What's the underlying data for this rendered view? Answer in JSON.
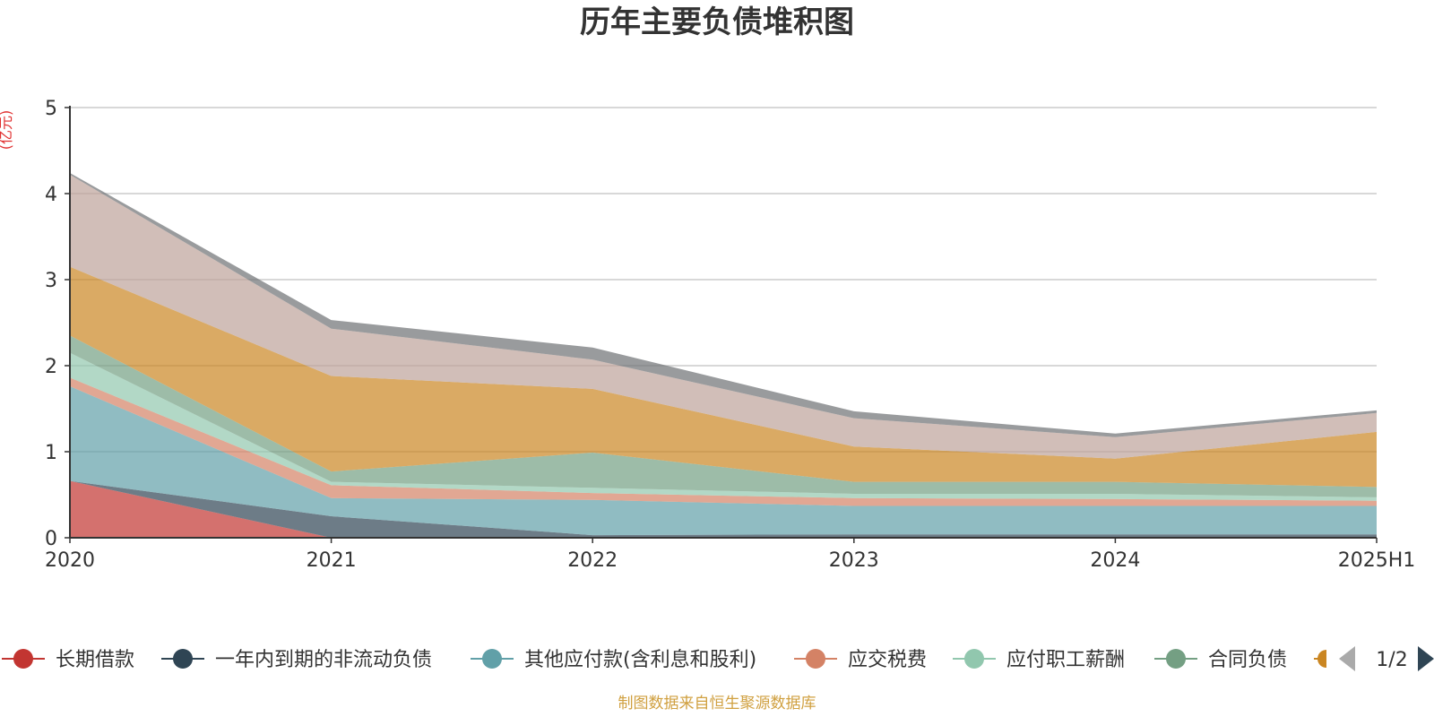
{
  "chart_data": {
    "type": "area",
    "stacked": true,
    "title": "历年主要负债堆积图",
    "ylabel": "(亿元)",
    "x": [
      "2020",
      "2021",
      "2022",
      "2023",
      "2024",
      "2025H1"
    ],
    "ylim": [
      0,
      5
    ],
    "yticks": [
      "0",
      "1",
      "2",
      "3",
      "4",
      "5"
    ],
    "grid": true,
    "legend_position": "bottom",
    "legend_page": "1/2",
    "source": "制图数据来自恒生聚源数据库",
    "series": [
      {
        "name": "长期借款",
        "color": "#c23531",
        "values": [
          0.66,
          0,
          0,
          0,
          0,
          0
        ]
      },
      {
        "name": "一年内到期的非流动负债",
        "color": "#2f4554",
        "values": [
          0,
          0.25,
          0.03,
          0.04,
          0.04,
          0.04
        ]
      },
      {
        "name": "其他应付款(含利息和股利)",
        "color": "#61a0a8",
        "values": [
          1.1,
          0.21,
          0.41,
          0.33,
          0.33,
          0.33
        ]
      },
      {
        "name": "应交税费",
        "color": "#d48265",
        "values": [
          0.1,
          0.15,
          0.08,
          0.09,
          0.08,
          0.06
        ]
      },
      {
        "name": "应付职工薪酬",
        "color": "#91c7ae",
        "values": [
          0.29,
          0.04,
          0.06,
          0.05,
          0.06,
          0.04
        ]
      },
      {
        "name": "合同负债",
        "color": "#749f83",
        "values": [
          0.2,
          0.12,
          0.41,
          0.14,
          0.14,
          0.12
        ]
      },
      {
        "name": "",
        "color": "#ca8622",
        "values": [
          0.8,
          1.11,
          0.74,
          0.41,
          0.27,
          0.64
        ]
      },
      {
        "name": "",
        "color": "#bda29a",
        "values": [
          1.07,
          0.55,
          0.34,
          0.33,
          0.25,
          0.22
        ]
      },
      {
        "name": "",
        "color": "#6e7074",
        "values": [
          0.02,
          0.1,
          0.14,
          0.08,
          0.04,
          0.03
        ]
      }
    ]
  }
}
